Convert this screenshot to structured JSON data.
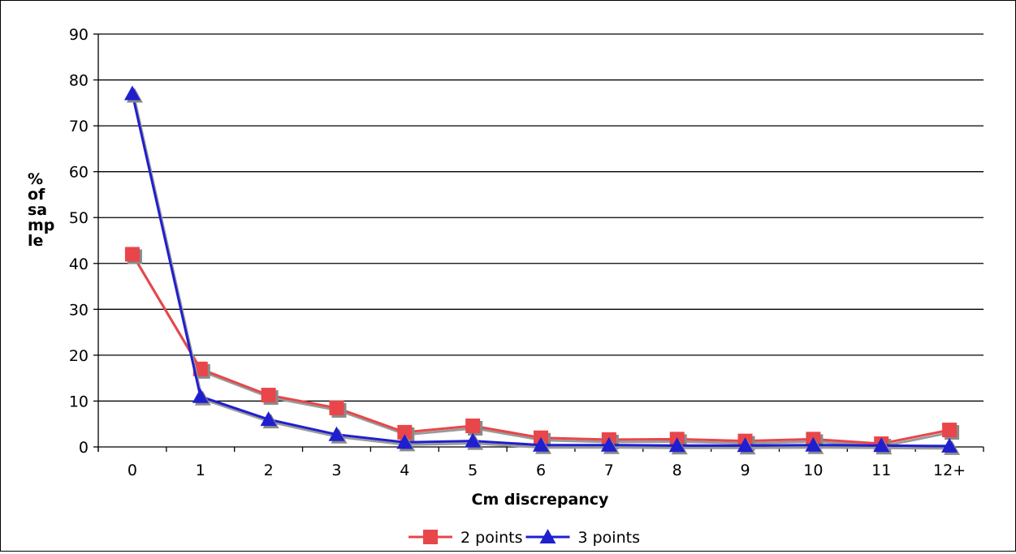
{
  "chart_data": {
    "type": "line",
    "title": "",
    "xlabel": "Cm discrepancy",
    "ylabel_lines": [
      "%",
      "of",
      "sa",
      "mp",
      "le"
    ],
    "categories": [
      "0",
      "1",
      "2",
      "3",
      "4",
      "5",
      "6",
      "7",
      "8",
      "9",
      "10",
      "11",
      "12+"
    ],
    "ylim": [
      0,
      90
    ],
    "yticks": [
      0,
      10,
      20,
      30,
      40,
      50,
      60,
      70,
      80,
      90
    ],
    "grid": true,
    "legend": "bottom",
    "series": [
      {
        "name": "2 points",
        "marker": "square",
        "color": "#e8464a",
        "values": [
          42,
          17,
          11.3,
          8.5,
          3.2,
          4.6,
          2,
          1.6,
          1.7,
          1.3,
          1.7,
          0.7,
          3.7
        ]
      },
      {
        "name": "3 points",
        "marker": "triangle",
        "color": "#1f1fd0",
        "values": [
          77,
          11,
          6,
          2.7,
          1,
          1.3,
          0.4,
          0.4,
          0.3,
          0.3,
          0.4,
          0.3,
          0.2
        ]
      }
    ]
  }
}
